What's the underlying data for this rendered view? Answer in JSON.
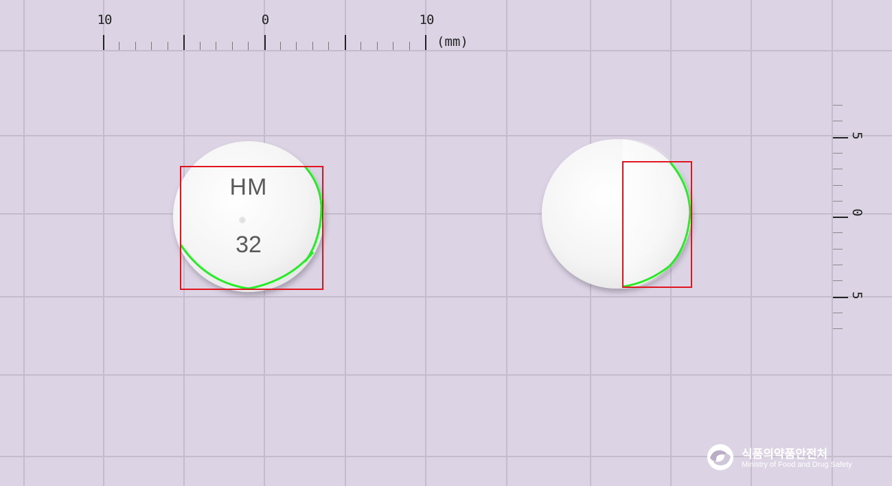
{
  "ruler_top": {
    "labels": [
      "10",
      "0",
      "10"
    ],
    "unit": "(mm)"
  },
  "ruler_right": {
    "labels": [
      "5",
      "0",
      "5"
    ]
  },
  "pill_front": {
    "imprint_line1": "HM",
    "imprint_line2": "32",
    "color": "white",
    "shape": "round"
  },
  "pill_back": {
    "color": "white",
    "shape": "round"
  },
  "overlay": {
    "box_color": "#e0141c",
    "contour_color": "#22ee22"
  },
  "logo": {
    "name_ko": "식품의약품안전처",
    "name_en": "Ministry of Food and Drug Safety"
  }
}
